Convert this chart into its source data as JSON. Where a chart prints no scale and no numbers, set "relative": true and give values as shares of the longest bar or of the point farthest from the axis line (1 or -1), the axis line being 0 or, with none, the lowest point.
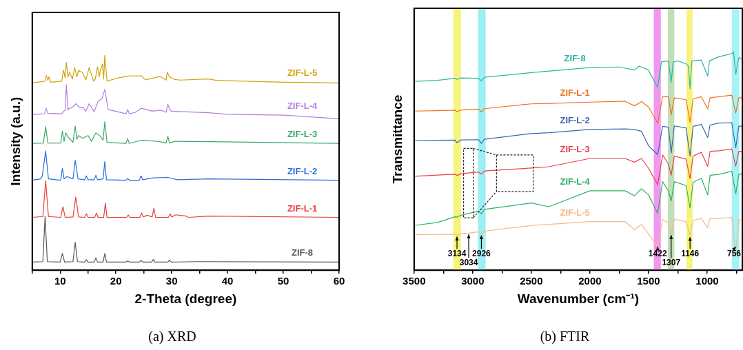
{
  "chart_data": [
    {
      "type": "line",
      "title": "(a) XRD",
      "xlabel": "2-Theta (degree)",
      "ylabel": "Intensity (a.u.)",
      "relative": true,
      "legend": false,
      "tick_labels": "x",
      "xlim": [
        5,
        60
      ],
      "xticks": [
        {
          "value": 5,
          "label": null
        },
        10,
        {
          "value": 15,
          "label": null
        },
        20,
        {
          "value": 25,
          "label": null
        },
        30,
        {
          "value": 35,
          "label": null
        },
        40,
        {
          "value": 45,
          "label": null
        },
        50,
        {
          "value": 55,
          "label": null
        },
        60
      ],
      "series": [
        {
          "name": "ZIF-L-5",
          "color": "#d4a10c",
          "x": [
            5,
            7.3,
            7.5,
            7.8,
            8.0,
            8.3,
            10.3,
            10.6,
            10.9,
            11.1,
            11.4,
            11.7,
            12.2,
            12.6,
            13.0,
            13.3,
            14.0,
            14.6,
            15.2,
            16.0,
            16.3,
            16.7,
            17.0,
            17.2,
            17.6,
            17.8,
            18.0,
            18.4,
            20.4,
            22.1,
            24.5,
            25.3,
            27.9,
            29.0,
            29.2,
            29.6,
            30.5,
            31.5,
            36.6,
            38,
            50,
            60
          ],
          "values": [
            0.872,
            0.88,
            0.907,
            0.885,
            0.9,
            0.875,
            0.88,
            0.932,
            0.895,
            0.968,
            0.9,
            0.92,
            0.89,
            0.943,
            0.9,
            0.93,
            0.92,
            0.885,
            0.943,
            0.88,
            0.89,
            0.946,
            0.9,
            0.93,
            0.96,
            0.89,
            1,
            0.88,
            0.895,
            0.904,
            0.905,
            0.886,
            0.902,
            0.885,
            0.922,
            0.9,
            0.888,
            0.885,
            0.89,
            0.884,
            0.875,
            0.872
          ]
        },
        {
          "name": "ZIF-L-4",
          "color": "#b27ee0",
          "x": [
            5,
            7.2,
            7.5,
            7.8,
            8.8,
            10.3,
            10.6,
            10.9,
            11.1,
            11.4,
            11.6,
            12.1,
            12.8,
            13.5,
            14.1,
            14.6,
            15.2,
            16.1,
            16.8,
            17.5,
            18.0,
            18.6,
            21.8,
            22.1,
            22.4,
            23.5,
            24.6,
            26.5,
            28.0,
            29.0,
            29.3,
            29.7,
            30.0,
            36.6,
            40,
            50,
            60
          ],
          "values": [
            0.725,
            0.728,
            0.754,
            0.728,
            0.73,
            0.728,
            0.74,
            0.745,
            0.864,
            0.745,
            0.754,
            0.756,
            0.775,
            0.756,
            0.758,
            0.74,
            0.775,
            0.738,
            0.786,
            0.798,
            0.841,
            0.748,
            0.728,
            0.748,
            0.728,
            0.735,
            0.754,
            0.74,
            0.745,
            0.735,
            0.772,
            0.745,
            0.74,
            0.733,
            0.726,
            0.722,
            0.705
          ]
        },
        {
          "name": "ZIF-L-3",
          "color": "#3aa866",
          "x": [
            5,
            7.0,
            7.4,
            7.8,
            10.1,
            10.4,
            10.7,
            11.0,
            11.5,
            12.3,
            12.7,
            13.0,
            13.3,
            14.0,
            15.0,
            15.6,
            16.4,
            17.2,
            17.7,
            18.0,
            18.4,
            21.8,
            22.1,
            22.4,
            24.5,
            27.5,
            29.0,
            29.3,
            29.6,
            30.5,
            36.7,
            60
          ],
          "values": [
            0.59,
            0.592,
            0.668,
            0.592,
            0.592,
            0.647,
            0.6,
            0.639,
            0.618,
            0.595,
            0.671,
            0.61,
            0.627,
            0.614,
            0.627,
            0.6,
            0.639,
            0.624,
            0.605,
            0.691,
            0.595,
            0.59,
            0.612,
            0.59,
            0.605,
            0.6,
            0.592,
            0.624,
            0.592,
            0.6,
            0.598,
            0.59
          ]
        },
        {
          "name": "ZIF-L-2",
          "color": "#2a6ee0",
          "x": [
            5,
            6.5,
            6.8,
            7.4,
            7.9,
            10.1,
            10.4,
            10.7,
            11.2,
            12.3,
            12.7,
            13.2,
            14.4,
            14.7,
            15.0,
            16.1,
            16.4,
            16.7,
            17.7,
            18.0,
            18.3,
            21.8,
            22.1,
            22.4,
            24.2,
            24.5,
            24.8,
            26.7,
            29.3,
            31,
            36.7,
            60
          ],
          "values": [
            0.419,
            0.425,
            0.439,
            0.555,
            0.425,
            0.419,
            0.474,
            0.425,
            0.436,
            0.425,
            0.512,
            0.425,
            0.421,
            0.439,
            0.421,
            0.421,
            0.442,
            0.421,
            0.425,
            0.506,
            0.421,
            0.419,
            0.427,
            0.419,
            0.419,
            0.439,
            0.421,
            0.43,
            0.432,
            0.421,
            0.425,
            0.419
          ]
        },
        {
          "name": "ZIF-L-1",
          "color": "#ee3b3b",
          "x": [
            5,
            6.9,
            7.4,
            7.9,
            10.1,
            10.5,
            10.9,
            12.3,
            12.8,
            13.3,
            14.4,
            14.7,
            15.0,
            16.2,
            16.5,
            16.8,
            17.8,
            18.1,
            18.4,
            21.9,
            22.2,
            22.5,
            24.3,
            24.6,
            24.9,
            25.6,
            26.5,
            26.8,
            27.1,
            29.4,
            29.7,
            30.0,
            30.7,
            31.6,
            32.4,
            33,
            36.7,
            60
          ],
          "values": [
            0.246,
            0.25,
            0.416,
            0.25,
            0.246,
            0.295,
            0.246,
            0.248,
            0.341,
            0.248,
            0.246,
            0.263,
            0.246,
            0.246,
            0.266,
            0.246,
            0.246,
            0.312,
            0.246,
            0.246,
            0.257,
            0.246,
            0.246,
            0.266,
            0.248,
            0.256,
            0.248,
            0.289,
            0.246,
            0.246,
            0.262,
            0.248,
            0.258,
            0.255,
            0.253,
            0.246,
            0.252,
            0.246
          ]
        },
        {
          "name": "ZIF-8",
          "color": "#555555",
          "x": [
            5,
            6.9,
            7.3,
            7.7,
            10.0,
            10.4,
            10.8,
            12.3,
            12.7,
            13.1,
            14.4,
            14.7,
            15.0,
            16.1,
            16.4,
            16.7,
            17.7,
            18.0,
            18.3,
            21.8,
            22.1,
            22.4,
            24.2,
            24.5,
            24.8,
            26.4,
            26.7,
            27.0,
            29.3,
            29.6,
            29.9,
            35,
            60
          ],
          "values": [
            0.038,
            0.04,
            0.251,
            0.04,
            0.038,
            0.078,
            0.038,
            0.04,
            0.13,
            0.04,
            0.038,
            0.049,
            0.038,
            0.038,
            0.058,
            0.038,
            0.038,
            0.078,
            0.038,
            0.038,
            0.043,
            0.038,
            0.038,
            0.046,
            0.038,
            0.038,
            0.05,
            0.038,
            0.038,
            0.047,
            0.038,
            0.04,
            0.038
          ]
        }
      ]
    },
    {
      "type": "line",
      "title": "(b) FTIR",
      "xlabel": "Wavenumber (cm⁻¹)",
      "ylabel": "Transmittance",
      "relative": true,
      "legend": false,
      "tick_labels": "x",
      "xlim": [
        3500,
        700
      ],
      "xticks": [
        3500,
        {
          "value": 3250,
          "label": null
        },
        3000,
        {
          "value": 2750,
          "label": null
        },
        2500,
        {
          "value": 2250,
          "label": null
        },
        2000,
        {
          "value": 1750,
          "label": null
        },
        1500,
        {
          "value": 1250,
          "label": null
        },
        1000,
        {
          "value": 750,
          "label": null
        }
      ],
      "bands": [
        {
          "axis": "x",
          "from": 3165,
          "to": 3100,
          "color": "#f6f47a"
        },
        {
          "axis": "x",
          "from": 2955,
          "to": 2890,
          "color": "#9af0f4"
        },
        {
          "axis": "x",
          "from": 1455,
          "to": 1395,
          "color": "#f297f0"
        },
        {
          "axis": "x",
          "from": 1335,
          "to": 1280,
          "color": "#bfe0b6"
        },
        {
          "axis": "x",
          "from": 1175,
          "to": 1125,
          "color": "#f6f47a"
        },
        {
          "axis": "x",
          "from": 790,
          "to": 725,
          "color": "#a6f2f6"
        }
      ],
      "annotations": [
        {
          "text": "3134",
          "x": 3134,
          "y": 0.16
        },
        {
          "text": "3034",
          "x": 3034,
          "y": 0.17
        },
        {
          "text": "2926",
          "x": 2926,
          "y": 0.166
        },
        {
          "text": "1422",
          "x": 1422,
          "y": 0.107
        },
        {
          "text": "1307",
          "x": 1307,
          "y": 0.167
        },
        {
          "text": "1146",
          "x": 1146,
          "y": 0.158
        },
        {
          "text": "756",
          "x": 756,
          "y": 0.079
        }
      ],
      "series": [
        {
          "name": "ZIF-8",
          "color": "#2ab5a8",
          "x": [
            3500,
            3300,
            3150,
            3134,
            3100,
            2950,
            2926,
            2900,
            2500,
            2000,
            1750,
            1620,
            1580,
            1500,
            1450,
            1422,
            1390,
            1330,
            1307,
            1290,
            1250,
            1180,
            1160,
            1146,
            1130,
            1050,
            995,
            980,
            900,
            790,
            775,
            756,
            730,
            700
          ],
          "values": [
            0.865,
            0.87,
            0.879,
            0.874,
            0.881,
            0.879,
            0.868,
            0.884,
            0.905,
            0.928,
            0.931,
            0.917,
            0.935,
            0.917,
            0.865,
            0.837,
            0.954,
            0.959,
            0.86,
            0.954,
            0.959,
            0.945,
            0.936,
            0.832,
            0.959,
            0.963,
            0.889,
            0.959,
            0.978,
            0.992,
            1,
            0.898,
            0.973,
            0.97
          ]
        },
        {
          "name": "ZIF-L-1",
          "color": "#f07020",
          "x": [
            3500,
            3300,
            3150,
            3134,
            3100,
            2950,
            2926,
            2900,
            2500,
            2350,
            2000,
            1700,
            1620,
            1560,
            1500,
            1422,
            1380,
            1330,
            1307,
            1280,
            1180,
            1146,
            1120,
            1050,
            995,
            975,
            900,
            790,
            756,
            730,
            700
          ],
          "values": [
            0.729,
            0.731,
            0.733,
            0.726,
            0.734,
            0.738,
            0.725,
            0.74,
            0.762,
            0.764,
            0.77,
            0.774,
            0.753,
            0.772,
            0.748,
            0.673,
            0.795,
            0.795,
            0.711,
            0.79,
            0.781,
            0.678,
            0.785,
            0.795,
            0.739,
            0.79,
            0.795,
            0.802,
            0.72,
            0.79,
            0.79
          ]
        },
        {
          "name": "ZIF-L-2",
          "color": "#3a66b0",
          "x": [
            3500,
            3300,
            3150,
            3134,
            3100,
            2950,
            2926,
            2900,
            2500,
            2350,
            2000,
            1700,
            1620,
            1560,
            1500,
            1422,
            1380,
            1330,
            1307,
            1280,
            1180,
            1146,
            1120,
            1050,
            995,
            975,
            900,
            790,
            756,
            730,
            700
          ],
          "values": [
            0.594,
            0.595,
            0.596,
            0.584,
            0.597,
            0.598,
            0.581,
            0.6,
            0.626,
            0.63,
            0.645,
            0.647,
            0.645,
            0.636,
            0.57,
            0.53,
            0.659,
            0.655,
            0.537,
            0.661,
            0.652,
            0.523,
            0.659,
            0.668,
            0.608,
            0.665,
            0.674,
            0.676,
            0.561,
            0.66,
            0.66
          ]
        },
        {
          "name": "ZIF-L-3",
          "color": "#e8404a",
          "x": [
            3500,
            3300,
            3150,
            3134,
            3100,
            2950,
            2926,
            2900,
            2500,
            2350,
            2000,
            1700,
            1620,
            1560,
            1500,
            1422,
            1380,
            1330,
            1307,
            1280,
            1180,
            1146,
            1120,
            1050,
            995,
            975,
            900,
            790,
            756,
            730,
            700
          ],
          "values": [
            0.43,
            0.436,
            0.44,
            0.434,
            0.442,
            0.45,
            0.44,
            0.455,
            0.468,
            0.474,
            0.512,
            0.512,
            0.495,
            0.512,
            0.467,
            0.392,
            0.528,
            0.486,
            0.435,
            0.523,
            0.509,
            0.42,
            0.523,
            0.54,
            0.476,
            0.545,
            0.547,
            0.556,
            0.476,
            0.545,
            0.545
          ]
        },
        {
          "name": "ZIF-L-4",
          "color": "#30b060",
          "x": [
            3500,
            3300,
            3150,
            3134,
            3100,
            2950,
            2926,
            2900,
            2500,
            2350,
            2000,
            1700,
            1620,
            1560,
            1500,
            1422,
            1380,
            1330,
            1307,
            1280,
            1180,
            1146,
            1120,
            1050,
            995,
            975,
            900,
            790,
            756,
            730,
            700
          ],
          "values": [
            0.205,
            0.219,
            0.245,
            0.243,
            0.252,
            0.27,
            0.258,
            0.279,
            0.308,
            0.291,
            0.364,
            0.364,
            0.341,
            0.373,
            0.345,
            0.261,
            0.406,
            0.364,
            0.317,
            0.406,
            0.388,
            0.285,
            0.402,
            0.421,
            0.345,
            0.435,
            0.439,
            0.453,
            0.35,
            0.44,
            0.44
          ]
        },
        {
          "name": "ZIF-L-5",
          "color": "#f5b888",
          "x": [
            3500,
            3300,
            3150,
            3134,
            3100,
            3034,
            2950,
            2926,
            2900,
            2500,
            2350,
            2000,
            1700,
            1620,
            1560,
            1500,
            1422,
            1380,
            1330,
            1307,
            1280,
            1180,
            1146,
            1120,
            1050,
            995,
            975,
            900,
            790,
            756,
            730,
            700
          ],
          "values": [
            0.163,
            0.164,
            0.165,
            0.16,
            0.167,
            0.17,
            0.176,
            0.166,
            0.179,
            0.205,
            0.21,
            0.223,
            0.223,
            0.186,
            0.21,
            0.167,
            0.107,
            0.233,
            0.215,
            0.167,
            0.233,
            0.223,
            0.158,
            0.228,
            0.237,
            0.195,
            0.237,
            0.237,
            0.242,
            0.079,
            0.23,
            0.23
          ]
        }
      ]
    }
  ]
}
